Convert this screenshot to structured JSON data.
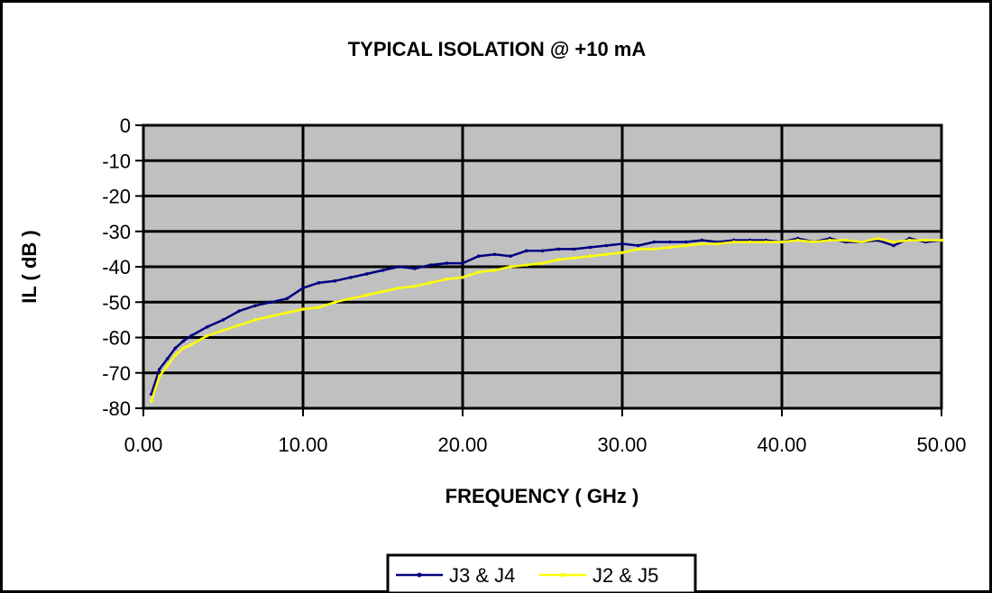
{
  "chart_data": {
    "type": "line",
    "title": "TYPICAL ISOLATION @ +10 mA",
    "xlabel": "FREQUENCY ( GHz )",
    "ylabel": "IL ( dB )",
    "xlim": [
      0,
      50
    ],
    "ylim": [
      -80,
      0
    ],
    "x_ticks": [
      "0.00",
      "10.00",
      "20.00",
      "30.00",
      "40.00",
      "50.00"
    ],
    "y_ticks": [
      "0",
      "-10",
      "-20",
      "-30",
      "-40",
      "-50",
      "-60",
      "-70",
      "-80"
    ],
    "grid": true,
    "legend_position": "bottom",
    "plot_background": "#c0c0c0",
    "series": [
      {
        "name": "J3 & J4",
        "color": "#000080",
        "x": [
          0.5,
          1,
          1.5,
          2,
          2.5,
          3,
          4,
          5,
          6,
          7,
          8,
          9,
          10,
          11,
          12,
          13,
          14,
          15,
          16,
          17,
          18,
          19,
          20,
          21,
          22,
          23,
          24,
          25,
          26,
          27,
          28,
          29,
          30,
          31,
          32,
          33,
          34,
          35,
          36,
          37,
          38,
          39,
          40,
          41,
          42,
          43,
          44,
          45,
          46,
          47,
          48,
          49,
          50
        ],
        "y": [
          -76,
          -69,
          -66,
          -63,
          -61,
          -59.5,
          -57,
          -55,
          -52.5,
          -51,
          -50,
          -49,
          -46,
          -44.5,
          -44,
          -43,
          -42,
          -41,
          -40,
          -40.5,
          -39.5,
          -39,
          -39,
          -37,
          -36.5,
          -37,
          -35.5,
          -35.5,
          -35,
          -35,
          -34.5,
          -34,
          -33.5,
          -34,
          -33,
          -33,
          -33,
          -32.5,
          -33,
          -32.5,
          -32.5,
          -32.5,
          -33,
          -32,
          -33,
          -32,
          -33,
          -33,
          -32.5,
          -34,
          -32,
          -33,
          -32.5
        ]
      },
      {
        "name": "J2 & J5",
        "color": "#ffff00",
        "x": [
          0.5,
          1,
          1.5,
          2,
          2.5,
          3,
          4,
          5,
          6,
          7,
          8,
          9,
          10,
          11,
          12,
          13,
          14,
          15,
          16,
          17,
          18,
          19,
          20,
          21,
          22,
          23,
          24,
          25,
          26,
          27,
          28,
          29,
          30,
          31,
          32,
          33,
          34,
          35,
          36,
          37,
          38,
          39,
          40,
          41,
          42,
          43,
          44,
          45,
          46,
          47,
          48,
          49,
          50
        ],
        "y": [
          -78,
          -71,
          -68,
          -65,
          -63,
          -62,
          -59.5,
          -58,
          -56.5,
          -55,
          -54,
          -53,
          -52,
          -51.5,
          -50,
          -49,
          -48,
          -47,
          -46,
          -45.5,
          -44.5,
          -43.5,
          -43,
          -41.5,
          -41,
          -40,
          -39.5,
          -39,
          -38,
          -37.5,
          -37,
          -36.5,
          -36,
          -35,
          -35,
          -34.5,
          -34,
          -33.5,
          -33.5,
          -33,
          -33,
          -33,
          -33,
          -32.5,
          -33,
          -32.5,
          -32.5,
          -33,
          -32,
          -33,
          -32.5,
          -32.5,
          -32.5
        ]
      }
    ]
  }
}
